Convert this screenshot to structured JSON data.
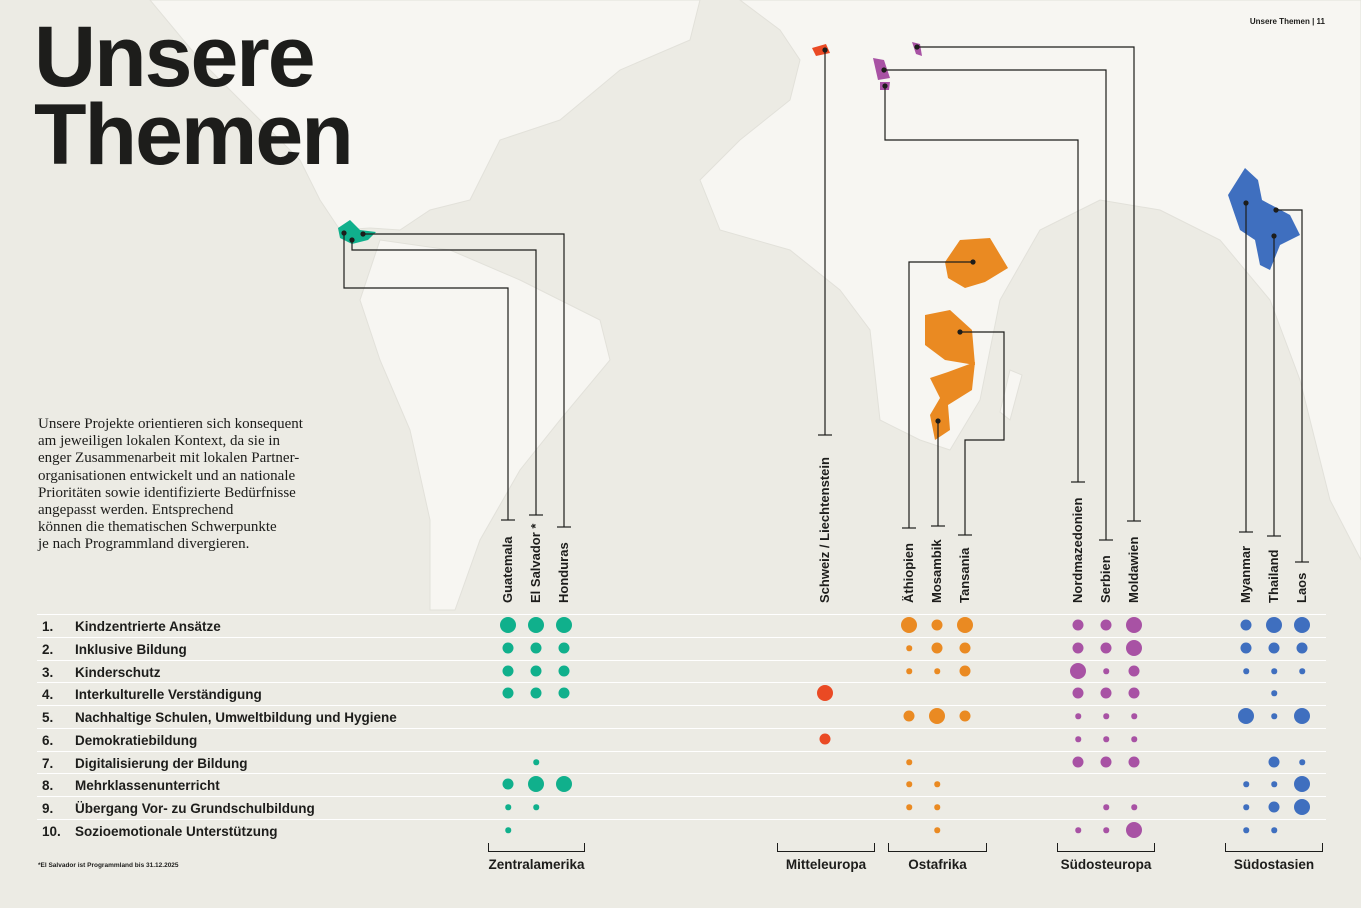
{
  "header": "Unsere Themen | 11",
  "title_line1": "Unsere",
  "title_line2": "Themen",
  "intro": "Unsere Projekte orientieren sich konsequent\nam jeweiligen lokalen Kontext, da sie in\nenger Zusammenarbeit mit lokalen Partner-\norganisationen entwickelt und an nationale\nPrioritäten sowie identifizierte Bedürfnisse\nangepasst werden. Entsprechend\nkönnen die thematischen Schwerpunkte\nje nach Programmland divergieren.",
  "footnote": "*El Salvador ist Programmland bis 31.12.2025",
  "colors": {
    "Zentralamerika": "#10b08c",
    "Mitteleuropa": "#ea4a24",
    "Ostafrika": "#ea8a22",
    "Südosteuropa": "#a852a4",
    "Südostasien": "#3f6fbf"
  },
  "regions": [
    {
      "name": "Zentralamerika",
      "countries": [
        "Guatemala",
        "El Salvador *",
        "Honduras"
      ]
    },
    {
      "name": "Mitteleuropa",
      "countries": [
        "Schweiz / Liechtenstein"
      ]
    },
    {
      "name": "Ostafrika",
      "countries": [
        "Äthiopien",
        "Mosambik",
        "Tansania"
      ]
    },
    {
      "name": "Südosteuropa",
      "countries": [
        "Nordmazedonien",
        "Serbien",
        "Moldawien"
      ]
    },
    {
      "name": "Südostasien",
      "countries": [
        "Myanmar",
        "Thailand",
        "Laos"
      ]
    }
  ],
  "themes": [
    {
      "num": "1.",
      "label": "Kindzentrierte Ansätze"
    },
    {
      "num": "2.",
      "label": "Inklusive Bildung"
    },
    {
      "num": "3.",
      "label": "Kinderschutz"
    },
    {
      "num": "4.",
      "label": "Interkulturelle Verständigung"
    },
    {
      "num": "5.",
      "label": "Nachhaltige Schulen, Umweltbildung und Hygiene"
    },
    {
      "num": "6.",
      "label": "Demokratiebildung"
    },
    {
      "num": "7.",
      "label": "Digitalisierung der Bildung"
    },
    {
      "num": "8.",
      "label": "Mehrklassenunterricht"
    },
    {
      "num": "9.",
      "label": "Übergang Vor- zu Grundschulbildung"
    },
    {
      "num": "10.",
      "label": "Sozioemotionale Unterstützung"
    }
  ],
  "chart_data": {
    "type": "dot-matrix",
    "scale": "0 = none, 1 = small, 2 = medium, 3 = large",
    "columns": [
      "Guatemala",
      "El Salvador",
      "Honduras",
      "Schweiz / Liechtenstein",
      "Äthiopien",
      "Mosambik",
      "Tansania",
      "Nordmazedonien",
      "Serbien",
      "Moldawien",
      "Myanmar",
      "Thailand",
      "Laos"
    ],
    "values": {
      "Guatemala": [
        3,
        2,
        2,
        2,
        0,
        0,
        0,
        2,
        1,
        1
      ],
      "El Salvador": [
        3,
        2,
        2,
        2,
        0,
        0,
        1,
        3,
        1,
        0
      ],
      "Honduras": [
        3,
        2,
        2,
        2,
        0,
        0,
        0,
        3,
        0,
        0
      ],
      "Schweiz / Liechtenstein": [
        0,
        0,
        0,
        3,
        0,
        2,
        0,
        0,
        0,
        0
      ],
      "Äthiopien": [
        3,
        1,
        1,
        0,
        2,
        0,
        1,
        1,
        1,
        0
      ],
      "Mosambik": [
        2,
        2,
        1,
        0,
        3,
        0,
        0,
        1,
        1,
        1
      ],
      "Tansania": [
        3,
        2,
        2,
        0,
        2,
        0,
        0,
        0,
        0,
        0
      ],
      "Nordmazedonien": [
        2,
        2,
        3,
        2,
        1,
        1,
        2,
        0,
        0,
        1
      ],
      "Serbien": [
        2,
        2,
        1,
        2,
        1,
        1,
        2,
        0,
        1,
        1
      ],
      "Moldawien": [
        3,
        3,
        2,
        2,
        1,
        1,
        2,
        0,
        1,
        3
      ],
      "Myanmar": [
        2,
        2,
        1,
        0,
        3,
        0,
        0,
        1,
        1,
        1
      ],
      "Thailand": [
        3,
        2,
        1,
        1,
        1,
        0,
        2,
        1,
        2,
        1
      ],
      "Laos": [
        3,
        2,
        1,
        0,
        3,
        0,
        1,
        3,
        3,
        0
      ]
    }
  }
}
